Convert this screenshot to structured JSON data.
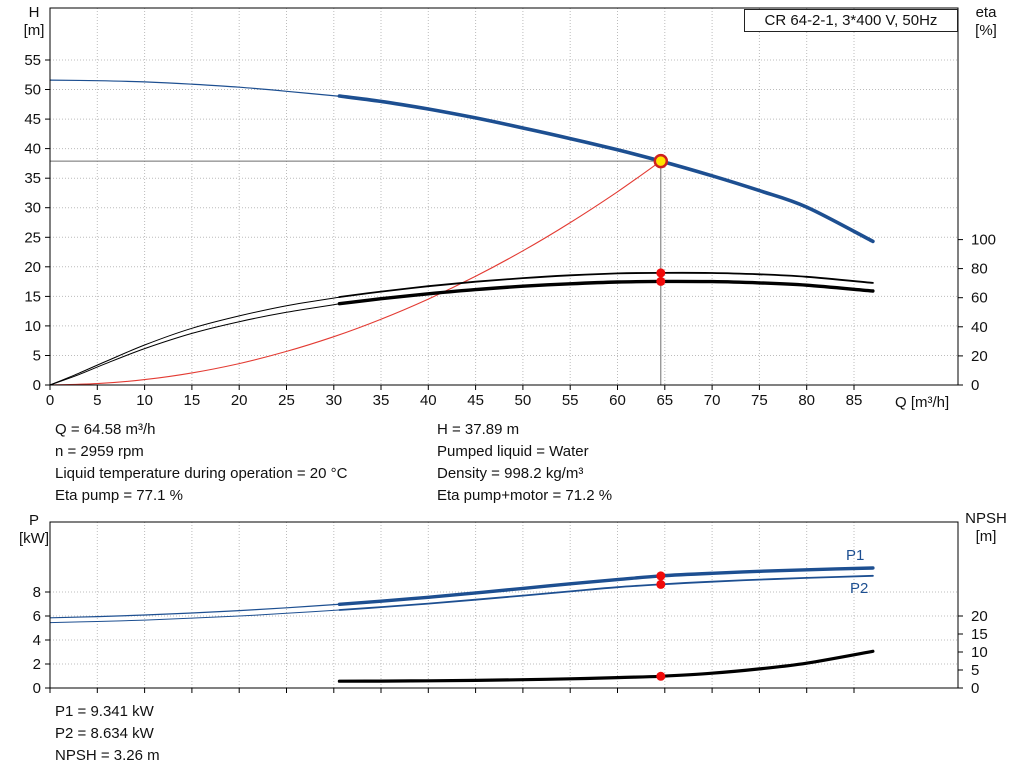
{
  "header": {
    "title_box": "CR 64-2-1, 3*400 V, 50Hz"
  },
  "colors": {
    "curve_blue": "#1d4f91",
    "curve_black": "#000000",
    "system_red": "#e33b33",
    "marker_red": "#f00a0a",
    "duty_yellow": "#ffe400",
    "duty_ring_red": "#cf2020",
    "grid_gray": "#bcbcbc",
    "crosshair_gray": "#6e6e6e"
  },
  "axis_labels": {
    "top_left_1": "H",
    "top_left_2": "[m]",
    "top_right_1": "eta",
    "top_right_2": "[%]",
    "x": "Q [m³/h]",
    "bottom_left_1": "P",
    "bottom_left_2": "[kW]",
    "bottom_right_1": "NPSH",
    "bottom_right_2": "[m]"
  },
  "curve_labels": {
    "p1": "P1",
    "p2": "P2"
  },
  "top_info": {
    "col1": [
      "Q = 64.58 m³/h",
      "n = 2959 rpm",
      "Liquid temperature during operation = 20 °C",
      "Eta pump = 77.1 %"
    ],
    "col2": [
      "H = 37.89 m",
      "Pumped liquid = Water",
      "Density = 998.2 kg/m³",
      "Eta pump+motor = 71.2 %"
    ]
  },
  "bottom_info": [
    "P1 = 9.341 kW",
    "P2 = 8.634 kW",
    "NPSH = 3.26 m"
  ],
  "operating_point": {
    "Q_m3h": 64.58,
    "H_m": 37.89,
    "n_rpm": 2959,
    "eta_pump_pct": 77.1,
    "eta_pump_motor_pct": 71.2,
    "P1_kW": 9.341,
    "P2_kW": 8.634,
    "NPSH_m": 3.26
  },
  "chart_data": [
    {
      "type": "line",
      "title": "CR 64-2-1, 3*400 V, 50Hz",
      "xlabel": "Q [m³/h]",
      "ylabel_left": "H [m]",
      "ylabel_right": "eta [%]",
      "xlim": [
        0,
        96
      ],
      "ylim_left": [
        0,
        63.8
      ],
      "ylim_right": [
        0,
        259.2
      ],
      "x_ticks": [
        0,
        5,
        10,
        15,
        20,
        25,
        30,
        35,
        40,
        45,
        50,
        55,
        60,
        65,
        70,
        75,
        80,
        85
      ],
      "y_ticks_left": [
        0,
        5,
        10,
        15,
        20,
        25,
        30,
        35,
        40,
        45,
        50,
        55
      ],
      "y_ticks_right": [
        0,
        20,
        40,
        60,
        80,
        100
      ],
      "show_x_tick_labels": true,
      "crosshair": {
        "q": 64.58,
        "h": 37.89
      },
      "series": [
        {
          "name": "system-curve",
          "axis": "left",
          "color": "#e33b33",
          "width": 1.1,
          "points": [
            [
              0,
              0
            ],
            [
              5,
              0.23
            ],
            [
              10,
              0.91
            ],
            [
              15,
              2.04
            ],
            [
              20,
              3.63
            ],
            [
              25,
              5.68
            ],
            [
              30,
              8.18
            ],
            [
              35,
              11.13
            ],
            [
              40,
              14.54
            ],
            [
              45,
              18.4
            ],
            [
              50,
              22.71
            ],
            [
              55,
              27.48
            ],
            [
              60,
              32.7
            ],
            [
              64.58,
              37.89
            ]
          ]
        },
        {
          "name": "head-thin",
          "axis": "left",
          "color": "#1d4f91",
          "width": 1.2,
          "points": [
            [
              0,
              51.6
            ],
            [
              5,
              51.5
            ],
            [
              10,
              51.3
            ],
            [
              15,
              50.9
            ],
            [
              20,
              50.4
            ],
            [
              25,
              49.7
            ],
            [
              31,
              48.8
            ]
          ]
        },
        {
          "name": "eta-pump-thin",
          "axis": "right",
          "color": "#000000",
          "width": 1,
          "points": [
            [
              0,
              0
            ],
            [
              3,
              8
            ],
            [
              6,
              16.5
            ],
            [
              10,
              27.5
            ],
            [
              15,
              39
            ],
            [
              20,
              47.5
            ],
            [
              25,
              54.5
            ],
            [
              31,
              60.8
            ]
          ]
        },
        {
          "name": "eta-pump-motor-thin",
          "axis": "right",
          "color": "#000000",
          "width": 1,
          "points": [
            [
              0,
              0
            ],
            [
              3,
              7
            ],
            [
              6,
              15
            ],
            [
              10,
              25
            ],
            [
              15,
              35.5
            ],
            [
              20,
              43.5
            ],
            [
              25,
              50
            ],
            [
              31,
              56.2
            ]
          ]
        },
        {
          "name": "head-thick",
          "axis": "left",
          "color": "#1d4f91",
          "width": 3.6,
          "points": [
            [
              30.6,
              48.9
            ],
            [
              35,
              48.0
            ],
            [
              40,
              46.7
            ],
            [
              45,
              45.2
            ],
            [
              50,
              43.5
            ],
            [
              55,
              41.7
            ],
            [
              60,
              39.8
            ],
            [
              64.58,
              37.89
            ],
            [
              70,
              35.4
            ],
            [
              75,
              32.9
            ],
            [
              80,
              30.1
            ],
            [
              87,
              24.3
            ]
          ]
        },
        {
          "name": "eta-pump-thick",
          "axis": "right",
          "color": "#000000",
          "width": 1.8,
          "points": [
            [
              30.6,
              60.5
            ],
            [
              35,
              64.2
            ],
            [
              40,
              67.9
            ],
            [
              45,
              71.0
            ],
            [
              50,
              73.5
            ],
            [
              55,
              75.4
            ],
            [
              60,
              76.7
            ],
            [
              64.58,
              77.1
            ],
            [
              70,
              77.0
            ],
            [
              75,
              76.1
            ],
            [
              80,
              74.4
            ],
            [
              87,
              70.2
            ]
          ]
        },
        {
          "name": "eta-pump-motor-thick",
          "axis": "right",
          "color": "#000000",
          "width": 3.4,
          "points": [
            [
              30.6,
              55.9
            ],
            [
              35,
              59.3
            ],
            [
              40,
              62.7
            ],
            [
              45,
              65.6
            ],
            [
              50,
              67.9
            ],
            [
              55,
              69.6
            ],
            [
              60,
              70.8
            ],
            [
              64.58,
              71.2
            ],
            [
              70,
              71.1
            ],
            [
              75,
              70.2
            ],
            [
              80,
              68.6
            ],
            [
              87,
              64.6
            ]
          ]
        }
      ],
      "markers": [
        {
          "name": "eta-pump-point",
          "axis": "right",
          "q": 64.58,
          "v": 77.1,
          "r": 4.5,
          "fill": "#f00a0a"
        },
        {
          "name": "eta-pump-motor-point",
          "axis": "right",
          "q": 64.58,
          "v": 71.2,
          "r": 4.5,
          "fill": "#f00a0a"
        },
        {
          "name": "duty-point",
          "axis": "left",
          "q": 64.58,
          "v": 37.89,
          "r": 6,
          "fill": "#ffe400",
          "stroke": "#cf2020",
          "stroke_width": 2.5
        }
      ]
    },
    {
      "type": "line",
      "title": "",
      "xlabel": "",
      "ylabel_left": "P [kW]",
      "ylabel_right": "NPSH [m]",
      "xlim": [
        0,
        96
      ],
      "ylim_left": [
        0,
        13.83
      ],
      "ylim_right": [
        0,
        46.1
      ],
      "x_ticks": [
        0,
        5,
        10,
        15,
        20,
        25,
        30,
        35,
        40,
        45,
        50,
        55,
        60,
        65,
        70,
        75,
        80,
        85
      ],
      "y_ticks_left": [
        0,
        2,
        4,
        6,
        8
      ],
      "y_ticks_right": [
        0,
        5,
        10,
        15,
        20
      ],
      "show_x_tick_labels": false,
      "crosshair": null,
      "series": [
        {
          "name": "p1-thin",
          "axis": "left",
          "color": "#1d4f91",
          "width": 1.2,
          "points": [
            [
              0,
              5.85
            ],
            [
              5,
              5.95
            ],
            [
              10,
              6.08
            ],
            [
              15,
              6.25
            ],
            [
              20,
              6.45
            ],
            [
              25,
              6.68
            ],
            [
              31,
              7.0
            ]
          ]
        },
        {
          "name": "p2-thin",
          "axis": "left",
          "color": "#1d4f91",
          "width": 1,
          "points": [
            [
              0,
              5.45
            ],
            [
              5,
              5.54
            ],
            [
              10,
              5.66
            ],
            [
              15,
              5.82
            ],
            [
              20,
              6.0
            ],
            [
              25,
              6.22
            ],
            [
              31,
              6.52
            ]
          ]
        },
        {
          "name": "p1-thick",
          "axis": "left",
          "color": "#1d4f91",
          "width": 3.4,
          "points": [
            [
              30.6,
              6.97
            ],
            [
              35,
              7.23
            ],
            [
              40,
              7.56
            ],
            [
              45,
              7.92
            ],
            [
              50,
              8.3
            ],
            [
              55,
              8.68
            ],
            [
              60,
              9.03
            ],
            [
              64.58,
              9.341
            ],
            [
              70,
              9.56
            ],
            [
              75,
              9.72
            ],
            [
              80,
              9.85
            ],
            [
              87,
              10.0
            ]
          ]
        },
        {
          "name": "p2-thick",
          "axis": "left",
          "color": "#1d4f91",
          "width": 1.8,
          "points": [
            [
              30.6,
              6.5
            ],
            [
              35,
              6.74
            ],
            [
              40,
              7.03
            ],
            [
              45,
              7.36
            ],
            [
              50,
              7.7
            ],
            [
              55,
              8.05
            ],
            [
              60,
              8.4
            ],
            [
              64.58,
              8.634
            ],
            [
              70,
              8.86
            ],
            [
              75,
              9.03
            ],
            [
              80,
              9.17
            ],
            [
              87,
              9.35
            ]
          ]
        },
        {
          "name": "npsh-thick",
          "axis": "right",
          "color": "#000000",
          "width": 3.2,
          "points": [
            [
              30.6,
              1.9
            ],
            [
              35,
              1.93
            ],
            [
              40,
              2.0
            ],
            [
              45,
              2.12
            ],
            [
              50,
              2.3
            ],
            [
              55,
              2.55
            ],
            [
              60,
              2.9
            ],
            [
              64.58,
              3.26
            ],
            [
              70,
              4.1
            ],
            [
              75,
              5.3
            ],
            [
              80,
              6.9
            ],
            [
              87,
              10.2
            ]
          ]
        }
      ],
      "markers": [
        {
          "name": "p1-point",
          "axis": "left",
          "q": 64.58,
          "v": 9.341,
          "r": 4.5,
          "fill": "#f00a0a"
        },
        {
          "name": "p2-point",
          "axis": "left",
          "q": 64.58,
          "v": 8.634,
          "r": 4.5,
          "fill": "#f00a0a"
        },
        {
          "name": "npsh-point",
          "axis": "right",
          "q": 64.58,
          "v": 3.26,
          "r": 4.5,
          "fill": "#f00a0a"
        }
      ]
    }
  ]
}
